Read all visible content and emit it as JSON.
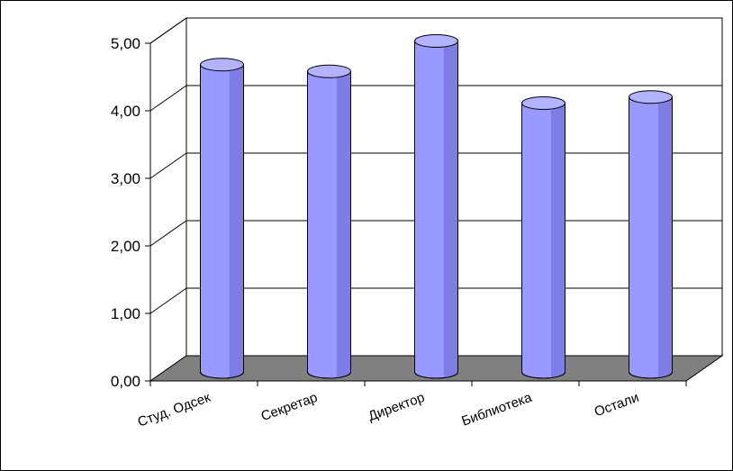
{
  "chart_data": {
    "type": "bar",
    "style": "3d-cylinder",
    "title": "",
    "xlabel": "",
    "ylabel": "",
    "categories": [
      "Студ. Одсек",
      "Секретар",
      "Директор",
      "Библиотека",
      "Остали"
    ],
    "values": [
      4.55,
      4.45,
      4.9,
      3.98,
      4.07
    ],
    "ylim": [
      0,
      5
    ],
    "yticks": [
      "0,00",
      "1,00",
      "2,00",
      "3,00",
      "4,00",
      "5,00"
    ],
    "grid": true,
    "legend": "none",
    "colors": {
      "bar_face": "#9999ff",
      "bar_shade": "#6666cc",
      "bar_top": "#b3b3ff",
      "floor": "#808080",
      "wall": "#ffffff",
      "grid": "#000000"
    }
  }
}
